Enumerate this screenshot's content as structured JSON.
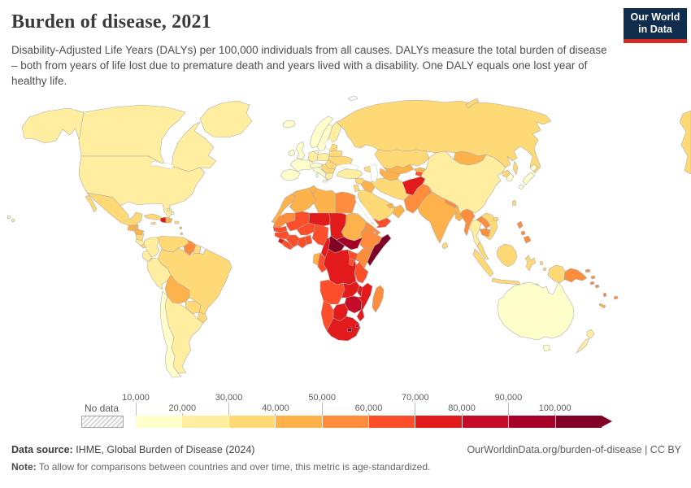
{
  "header": {
    "title": "Burden of disease, 2021",
    "subtitle": "Disability-Adjusted Life Years (DALYs) per 100,000 individuals from all causes. DALYs measure the total burden of disease – both from years of life lost due to premature death and years lived with a disability. One DALY equals one lost year of healthy life.",
    "logo": {
      "line1": "Our World",
      "line2": "in Data",
      "bg": "#102D4E",
      "accent": "#D42B21"
    }
  },
  "footer": {
    "source_label": "Data source:",
    "source_text": " IHME, Global Burden of Disease (2024)",
    "link": "OurWorldinData.org/burden-of-disease",
    "separator": " | ",
    "license": "CC BY",
    "note_label": "Note:",
    "note_text": " To allow for comparisons between countries and over time, this metric is age-standardized."
  },
  "chart_data": {
    "type": "choropleth-map",
    "title": "Burden of disease, 2021",
    "unit": "DALYs per 100,000 individuals",
    "year": "2021",
    "no_data_label": "No data",
    "tick_labels": [
      "10,000",
      "20,000",
      "30,000",
      "40,000",
      "50,000",
      "60,000",
      "70,000",
      "80,000",
      "90,000",
      "100,000"
    ],
    "tick_values": [
      10000,
      20000,
      30000,
      40000,
      50000,
      60000,
      70000,
      80000,
      90000,
      100000
    ],
    "bins": [
      "#FFFFCC",
      "#FFEDA0",
      "#FED976",
      "#FEB24C",
      "#FD8D3C",
      "#FC4E2A",
      "#E31A1C",
      "#C50B27",
      "#A50026",
      "#800026"
    ],
    "legend_arrow": true,
    "regions": {
      "greenland": "#FFEDA0",
      "alaska": "#FFEDA0",
      "canada": "#FFEDA0",
      "usa": "#FFEDA0",
      "hawaii": "#FFEDA0",
      "mexico": "#FED976",
      "guatemala": "#FEB24C",
      "belize": "#FEB24C",
      "honduras": "#FEB24C",
      "nicaragua": "#FED976",
      "costa-rica": "#FFEDA0",
      "panama": "#FED976",
      "cuba": "#FED976",
      "jamaica": "#FED976",
      "haiti": "#E31A1C",
      "dominican-republic": "#FEB24C",
      "puerto-rico": "#FED976",
      "bahamas": "#FFEDA0",
      "lesser-antilles": "#FEB24C",
      "trinidad": "#FEB24C",
      "colombia": "#FFEDA0",
      "venezuela": "#FED976",
      "guyana": "#FD8D3C",
      "suriname": "#FED976",
      "french-guiana": "#FFFFFF",
      "ecuador": "#FFEDA0",
      "peru": "#FFEDA0",
      "brazil": "#FED976",
      "bolivia": "#FEB24C",
      "paraguay": "#FED976",
      "uruguay": "#FED976",
      "argentina": "#FFEDA0",
      "chile": "#FFFFCC",
      "iceland": "#FFFFCC",
      "norway": "#FFFFCC",
      "sweden": "#FFFFCC",
      "finland": "#FFEDA0",
      "denmark": "#FFFFCC",
      "uk": "#FFFFCC",
      "ireland": "#FFFFCC",
      "france": "#FFFFCC",
      "iberia": "#FFFFCC",
      "germany": "#FFEDA0",
      "poland": "#FFEDA0",
      "alpine": "#FFFFCC",
      "italy": "#FFFFCC",
      "baltics": "#FED976",
      "belarus": "#FED976",
      "ukraine": "#FED976",
      "romania": "#FED976",
      "balkans": "#FED976",
      "greece": "#FFEDA0",
      "russia": "#FED976",
      "sakhalin": "#FED976",
      "novaya-zemlya": "#FED976",
      "svalbard": "#FFFFFF",
      "russia-wrap": "#FED976",
      "kazakhstan": "#FED976",
      "mongolia": "#FEB24C",
      "uzbekistan": "#FEB24C",
      "turkmenistan": "#FEB24C",
      "kyrgyzstan": "#FEB24C",
      "tajikistan": "#FC4E2A",
      "caucasus": "#FED976",
      "turkey": "#FFEDA0",
      "syria": "#FED976",
      "iraq": "#FEB24C",
      "jordan-israel": "#FED976",
      "saudi-arabia": "#FED976",
      "yemen": "#FC4E2A",
      "oman": "#FEB24C",
      "uae": "#FEB24C",
      "iran": "#FED976",
      "afghanistan": "#E31A1C",
      "pakistan": "#FD8D3C",
      "india": "#FEB24C",
      "nepal": "#FD8D3C",
      "bhutan": "#FEB24C",
      "bangladesh": "#FEB24C",
      "sri-lanka": "#FED976",
      "myanmar": "#FD8D3C",
      "thailand": "#FFEDA0",
      "laos": "#FD8D3C",
      "vietnam": "#FED976",
      "cambodia": "#FD8D3C",
      "malaysia": "#FED976",
      "china": "#FFEDA0",
      "north-korea": "#FED976",
      "south-korea": "#FFFFCC",
      "japan": "#FFFFCC",
      "taiwan": "#FED976",
      "hainan": "#FED976",
      "philippines": "#FD8D3C",
      "indonesia": "#FED976",
      "borneo": "#FED976",
      "png": "#FD8D3C",
      "solomon": "#FD8D3C",
      "vanuatu": "#FD8D3C",
      "fiji": "#FD8D3C",
      "new-caledonia": "#FEB24C",
      "australia": "#FFFFCC",
      "tasmania": "#FFFFCC",
      "new-zealand": "#FFEDA0",
      "morocco": "#FEB24C",
      "algeria": "#FEB24C",
      "tunisia": "#FEB24C",
      "libya": "#FEB24C",
      "egypt": "#FD8D3C",
      "mauritania": "#FD8D3C",
      "mali": "#FC4E2A",
      "niger": "#E31A1C",
      "chad": "#E31A1C",
      "sudan": "#FEB24C",
      "eritrea": "#FD8D3C",
      "djibouti": "#FD8D3C",
      "ethiopia": "#FD8D3C",
      "somalia": "#800026",
      "south-sudan": "#A50026",
      "central-african-republic": "#800026",
      "senegal": "#FC4E2A",
      "guinea": "#FC4E2A",
      "sierra-leone": "#E31A1C",
      "liberia": "#FC4E2A",
      "cote-divoire": "#FC4E2A",
      "ghana": "#FC4E2A",
      "togo-benin": "#FC4E2A",
      "burkina-faso": "#FC4E2A",
      "nigeria": "#FC4E2A",
      "cameroon": "#E31A1C",
      "gabon": "#FEB24C",
      "congo": "#FC4E2A",
      "drc": "#E31A1C",
      "uganda": "#FC4E2A",
      "kenya": "#FD8D3C",
      "rwanda-burundi": "#FC4E2A",
      "tanzania": "#FC4E2A",
      "angola": "#FC4E2A",
      "zambia": "#E31A1C",
      "malawi": "#E31A1C",
      "mozambique": "#E31A1C",
      "zimbabwe": "#C50B27",
      "botswana": "#E31A1C",
      "namibia": "#FC4E2A",
      "south-africa": "#E31A1C",
      "lesotho": "#800026",
      "eswatini": "#C50B27",
      "madagascar": "#FD8D3C"
    }
  }
}
